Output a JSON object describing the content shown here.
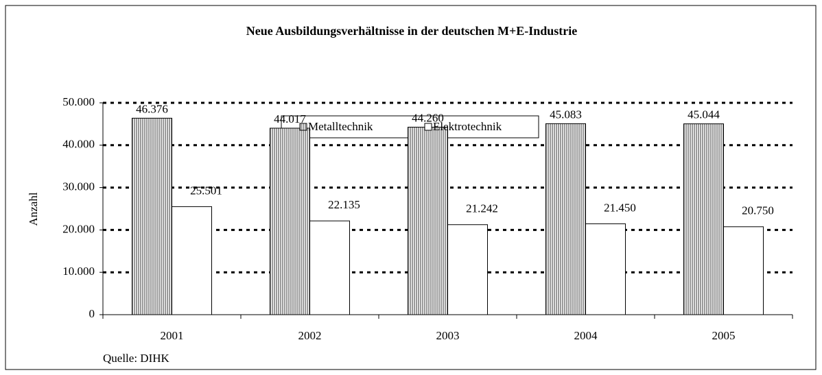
{
  "chart_data": {
    "type": "bar",
    "title": "Neue Ausbildungsverhältnisse in der deutschen M+E-Industrie",
    "y_label": "Anzahl",
    "source": "Quelle: DIHK",
    "categories": [
      "2001",
      "2002",
      "2003",
      "2004",
      "2005"
    ],
    "series": [
      {
        "name": "Metalltechnik",
        "color": "#999999",
        "pattern": "vertical-stripes",
        "values": [
          46376,
          44017,
          44260,
          45083,
          45044
        ],
        "value_labels": [
          "46.376",
          "44.017",
          "44.260",
          "45.083",
          "45.044"
        ]
      },
      {
        "name": "Elektrotechnik",
        "color": "#ffffff",
        "values": [
          25501,
          22135,
          21242,
          21450,
          20750
        ],
        "value_labels": [
          "25.501",
          "22.135",
          "21.242",
          "21.450",
          "20.750"
        ]
      }
    ],
    "ylim": [
      0,
      50000
    ],
    "yticks": [
      0,
      {
        "value": 10000,
        "label": "10.000"
      },
      {
        "value": 20000,
        "label": "20.000"
      },
      {
        "value": 30000,
        "label": "30.000"
      },
      {
        "value": 40000,
        "label": "40.000"
      },
      {
        "value": 50000,
        "label": "50.000"
      }
    ],
    "grid": true,
    "legend": "top"
  }
}
